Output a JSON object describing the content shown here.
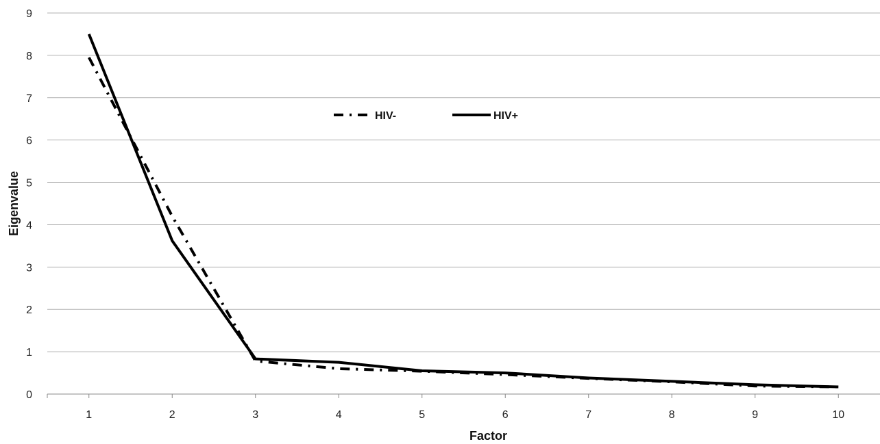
{
  "chart_data": {
    "type": "line",
    "xlabel": "Factor",
    "ylabel": "Eigenvalue",
    "x": [
      1,
      2,
      3,
      4,
      5,
      6,
      7,
      8,
      9,
      10
    ],
    "xlim": [
      0.5,
      10.5
    ],
    "ylim": [
      0,
      9
    ],
    "y_ticks": [
      0,
      1,
      2,
      3,
      4,
      5,
      6,
      7,
      8,
      9
    ],
    "grid": "horizontal",
    "legend_position": "top-center",
    "series": [
      {
        "name": "HIV-",
        "style": "dash-dot",
        "color": "#000000",
        "values": [
          7.95,
          4.2,
          0.78,
          0.6,
          0.54,
          0.46,
          0.37,
          0.29,
          0.19,
          0.17
        ]
      },
      {
        "name": "HIV+",
        "style": "solid",
        "color": "#000000",
        "values": [
          8.5,
          3.62,
          0.83,
          0.75,
          0.55,
          0.5,
          0.38,
          0.3,
          0.22,
          0.17
        ]
      }
    ]
  }
}
